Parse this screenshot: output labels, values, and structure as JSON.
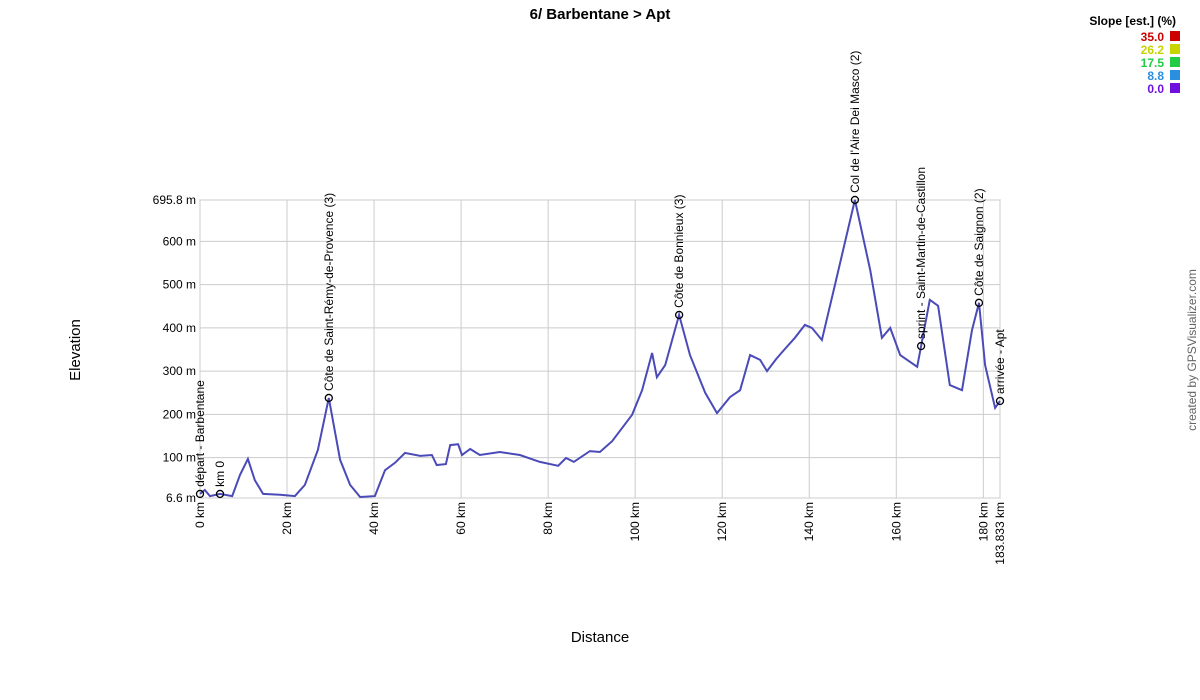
{
  "chart_data": {
    "type": "line",
    "title": "6/ Barbentane > Apt",
    "xlabel": "Distance",
    "ylabel": "Elevation",
    "credit": "created by GPSVisualizer.com",
    "grid": true,
    "xlim": [
      0,
      183.833
    ],
    "ylim": [
      6.6,
      695.8
    ],
    "xticks": [
      {
        "value": 0,
        "label": "0 km"
      },
      {
        "value": 20,
        "label": "20 km"
      },
      {
        "value": 40,
        "label": "40 km"
      },
      {
        "value": 60,
        "label": "60 km"
      },
      {
        "value": 80,
        "label": "80 km"
      },
      {
        "value": 100,
        "label": "100 km"
      },
      {
        "value": 120,
        "label": "120 km"
      },
      {
        "value": 140,
        "label": "140 km"
      },
      {
        "value": 160,
        "label": "160 km"
      },
      {
        "value": 180,
        "label": "180 km"
      },
      {
        "value": 183.833,
        "label": "183.833 km"
      }
    ],
    "yticks": [
      {
        "value": 6.6,
        "label": "6.6 m"
      },
      {
        "value": 100,
        "label": "100 m"
      },
      {
        "value": 200,
        "label": "200 m"
      },
      {
        "value": 300,
        "label": "300 m"
      },
      {
        "value": 400,
        "label": "400 m"
      },
      {
        "value": 500,
        "label": "500 m"
      },
      {
        "value": 600,
        "label": "600 m"
      },
      {
        "value": 695.8,
        "label": "695.8 m"
      }
    ],
    "series": [
      {
        "name": "Elevation",
        "color": "#4a4ab8",
        "x": [
          0,
          1.1,
          2.3,
          4.6,
          7.4,
          9.2,
          11.0,
          12.6,
          14.5,
          18.4,
          21.8,
          24.1,
          27.1,
          29.6,
          32.2,
          34.5,
          36.8,
          40.2,
          42.5,
          44.8,
          47.1,
          50.6,
          53.3,
          54.4,
          56.5,
          57.5,
          59.3,
          60.2,
          62.1,
          64.3,
          68.9,
          73.5,
          78.1,
          82.3,
          84.1,
          85.9,
          89.6,
          91.9,
          94.7,
          99.3,
          101.6,
          103.9,
          105.0,
          106.9,
          110.1,
          112.6,
          116.1,
          118.8,
          121.8,
          124.1,
          126.4,
          128.7,
          130.3,
          132.4,
          134.2,
          136.7,
          139.0,
          140.6,
          142.9,
          145.9,
          150.5,
          154.0,
          156.7,
          158.6,
          160.9,
          164.8,
          165.7,
          167.7,
          169.6,
          172.3,
          175.1,
          177.4,
          179.0,
          180.4,
          182.7,
          183.833
        ],
        "values": [
          16,
          25,
          11,
          16,
          11,
          60,
          97,
          48,
          16,
          14,
          11,
          37,
          118,
          238,
          95,
          37,
          9,
          11,
          71,
          88,
          111,
          104,
          106,
          83,
          85,
          129,
          131,
          106,
          120,
          106,
          113,
          106,
          90,
          81,
          99,
          90,
          115,
          113,
          138,
          199,
          256,
          342,
          286,
          314,
          430,
          337,
          250,
          203,
          240,
          256,
          337,
          326,
          300,
          328,
          349,
          377,
          407,
          400,
          372,
          499,
          696,
          534,
          377,
          400,
          337,
          310,
          358,
          465,
          451,
          268,
          256,
          395,
          458,
          314,
          215,
          231
        ]
      }
    ],
    "annotations": [
      {
        "x": 0,
        "y": 16,
        "label": "départ - Barbentane"
      },
      {
        "x": 4.6,
        "y": 16,
        "label": "km 0"
      },
      {
        "x": 29.6,
        "y": 238,
        "label": "Côte de Saint-Rémy-de-Provence (3)"
      },
      {
        "x": 110.1,
        "y": 430,
        "label": "Côte de Bonnieux (3)"
      },
      {
        "x": 150.5,
        "y": 696,
        "label": "Col de l'Aire Dei Masco (2)"
      },
      {
        "x": 165.7,
        "y": 358,
        "label": "sprint - Saint-Martin-de-Castillon"
      },
      {
        "x": 179.0,
        "y": 458,
        "label": "Côte de Saignon (2)"
      },
      {
        "x": 183.833,
        "y": 231,
        "label": "arrivée - Apt"
      }
    ],
    "legend": {
      "title": "Slope [est.] (%)",
      "position": "top-right",
      "items": [
        {
          "value": 35,
          "label": "35.0",
          "color": "#cc0000"
        },
        {
          "value": 26.2,
          "label": "26.2",
          "color": "#c8d400"
        },
        {
          "value": 17.5,
          "label": "17.5",
          "color": "#22cc44"
        },
        {
          "value": 8.8,
          "label": "8.8",
          "color": "#2a8fe0"
        },
        {
          "value": 0,
          "label": "0.0",
          "color": "#7010e0"
        }
      ]
    }
  }
}
